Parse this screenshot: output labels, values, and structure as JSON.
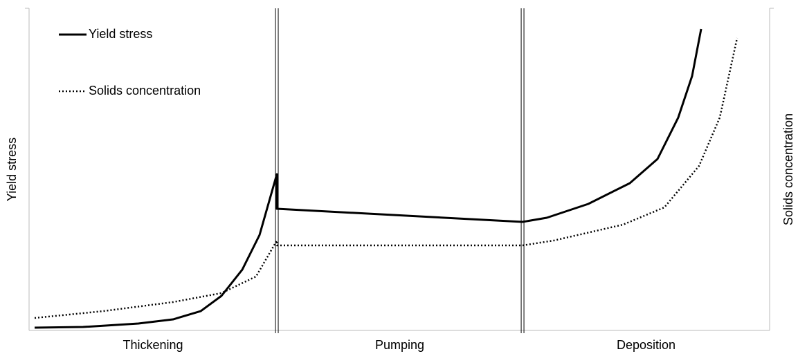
{
  "chart_data": {
    "type": "line",
    "y_label": "Yield stress",
    "y2_label": "Solids concentration",
    "categories": [
      "Thickening",
      "Pumping",
      "Deposition"
    ],
    "dividers": [
      33.46,
      66.64
    ],
    "xlim": [
      0,
      100
    ],
    "ylim": [
      0,
      100
    ],
    "legend": "upper left",
    "series": [
      {
        "name": "Yield stress",
        "color": "#000000",
        "style": "solid",
        "x": [
          0.75,
          7.29,
          14.77,
          19.44,
          23.18,
          25.98,
          28.79,
          31.12,
          33.46,
          33.46,
          66.64,
          69.91,
          75.51,
          81.12,
          84.86,
          87.66,
          89.53,
          90.75
        ],
        "values": [
          0.86,
          1.07,
          2.15,
          3.43,
          6.0,
          10.73,
          18.88,
          29.61,
          48.5,
          37.77,
          33.69,
          34.98,
          39.27,
          45.71,
          53.22,
          66.09,
          78.97,
          93.56
        ]
      },
      {
        "name": "Solids concentration",
        "color": "#000000",
        "style": "dotted",
        "x": [
          0.75,
          10.09,
          19.44,
          25.98,
          30.65,
          33.46,
          33.46,
          66.64,
          70.84,
          80.19,
          85.79,
          90.47,
          93.27,
          95.61
        ],
        "values": [
          3.86,
          6.01,
          8.8,
          11.59,
          16.74,
          27.9,
          26.39,
          26.39,
          27.9,
          32.83,
          38.2,
          51.07,
          66.09,
          90.77
        ]
      }
    ]
  }
}
